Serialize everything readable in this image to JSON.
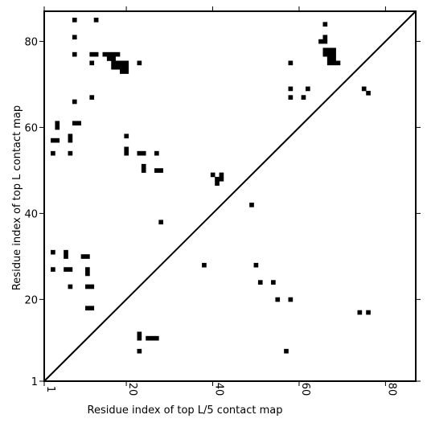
{
  "chart_data": {
    "type": "heatmap",
    "title": "",
    "xlabel": "Residue index of top L/5 contact map",
    "ylabel": "Residue index of top L contact map",
    "xlim": [
      1,
      87
    ],
    "ylim": [
      1,
      87
    ],
    "xticks": [
      "1",
      "20",
      "40",
      "60",
      "80"
    ],
    "xtick_values": [
      1,
      20,
      40,
      60,
      80
    ],
    "yticks": [
      "1",
      "20",
      "40",
      "60",
      "80"
    ],
    "ytick_values": [
      1,
      20,
      40,
      60,
      80
    ],
    "diagonal": true,
    "grid": false,
    "upper_triangle_contacts": [
      [
        66,
        84
      ],
      [
        66,
        81
      ],
      [
        66,
        80
      ],
      [
        65,
        80
      ],
      [
        58,
        75
      ],
      [
        67,
        78
      ],
      [
        68,
        78
      ],
      [
        66,
        78
      ],
      [
        66,
        77
      ],
      [
        67,
        77
      ],
      [
        68,
        77
      ],
      [
        67,
        76
      ],
      [
        68,
        76
      ],
      [
        67,
        75
      ],
      [
        68,
        75
      ],
      [
        69,
        75
      ],
      [
        58,
        69
      ],
      [
        62,
        69
      ],
      [
        58,
        67
      ],
      [
        61,
        67
      ],
      [
        75,
        69
      ],
      [
        76,
        68
      ]
    ],
    "lower_triangle_contacts": [
      [
        8,
        85
      ],
      [
        13,
        85
      ],
      [
        8,
        81
      ],
      [
        8,
        77
      ],
      [
        12,
        77
      ],
      [
        13,
        77
      ],
      [
        15,
        77
      ],
      [
        16,
        77
      ],
      [
        17,
        77
      ],
      [
        18,
        77
      ],
      [
        16,
        76
      ],
      [
        17,
        76
      ],
      [
        12,
        75
      ],
      [
        17,
        75
      ],
      [
        18,
        75
      ],
      [
        19,
        75
      ],
      [
        20,
        75
      ],
      [
        23,
        75
      ],
      [
        17,
        74
      ],
      [
        18,
        74
      ],
      [
        19,
        74
      ],
      [
        20,
        74
      ],
      [
        19,
        73
      ],
      [
        20,
        73
      ],
      [
        12,
        67
      ],
      [
        8,
        66
      ],
      [
        4,
        61
      ],
      [
        4,
        60
      ],
      [
        8,
        61
      ],
      [
        9,
        61
      ],
      [
        20,
        58
      ],
      [
        3,
        57
      ],
      [
        4,
        57
      ],
      [
        7,
        58
      ],
      [
        7,
        57
      ],
      [
        3,
        54
      ],
      [
        7,
        54
      ],
      [
        20,
        55
      ],
      [
        20,
        54
      ],
      [
        23,
        54
      ],
      [
        24,
        54
      ],
      [
        27,
        54
      ],
      [
        24,
        51
      ],
      [
        24,
        50
      ],
      [
        27,
        50
      ],
      [
        28,
        50
      ],
      [
        40,
        49
      ],
      [
        41,
        48
      ],
      [
        42,
        49
      ],
      [
        42,
        48
      ],
      [
        41,
        47
      ],
      [
        49,
        42
      ],
      [
        28,
        38
      ],
      [
        3,
        31
      ],
      [
        6,
        31
      ],
      [
        6,
        30
      ],
      [
        10,
        30
      ],
      [
        11,
        30
      ],
      [
        38,
        28
      ],
      [
        50,
        28
      ],
      [
        3,
        27
      ],
      [
        6,
        27
      ],
      [
        7,
        27
      ],
      [
        11,
        27
      ],
      [
        11,
        26
      ],
      [
        51,
        24
      ],
      [
        54,
        24
      ],
      [
        7,
        23
      ],
      [
        11,
        23
      ],
      [
        12,
        23
      ],
      [
        55,
        20
      ],
      [
        58,
        20
      ],
      [
        11,
        18
      ],
      [
        12,
        18
      ],
      [
        74,
        17
      ],
      [
        76,
        17
      ],
      [
        23,
        12
      ],
      [
        23,
        11
      ],
      [
        25,
        11
      ],
      [
        26,
        11
      ],
      [
        27,
        11
      ],
      [
        23,
        8
      ],
      [
        57,
        8
      ]
    ]
  }
}
